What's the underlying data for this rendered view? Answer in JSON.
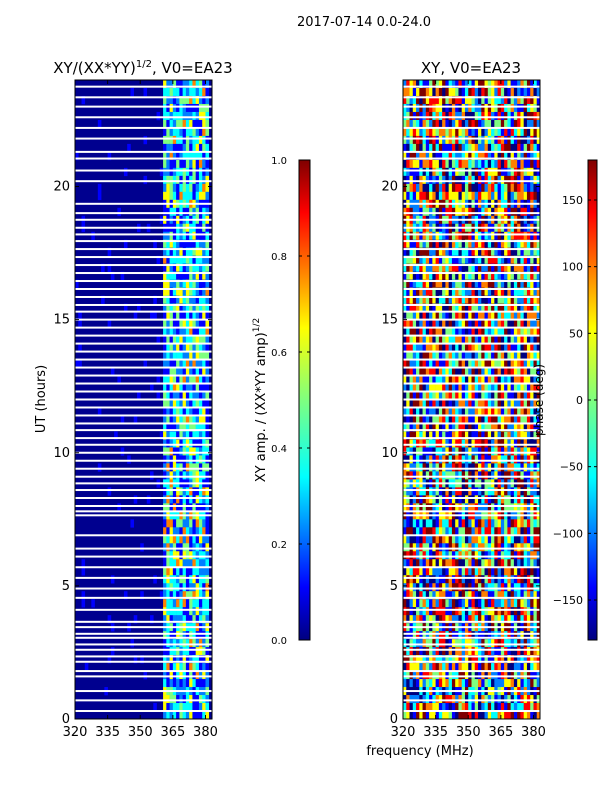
{
  "figure_title": "2017-07-14 0.0-24.0",
  "shared_xlabel": "frequency (MHz)",
  "colors": {
    "jet": [
      "#00007f",
      "#0000ff",
      "#007fff",
      "#00ffff",
      "#7fff7f",
      "#ffff00",
      "#ff7f00",
      "#ff0000",
      "#7f0000"
    ],
    "gap": "#ffffff",
    "low": "#00008f"
  },
  "chart_data": [
    {
      "type": "heatmap",
      "title_main": "XY/(XX*YY)",
      "title_sup": "1/2",
      "title_tail": ", V0=EA23",
      "xlabel": "",
      "ylabel": "UT (hours)",
      "xlim": [
        320,
        383
      ],
      "ylim": [
        0,
        24
      ],
      "xticks": [
        320,
        335,
        350,
        365,
        380
      ],
      "yticks": [
        0,
        5,
        10,
        15,
        20
      ],
      "active_band_mhz": [
        360,
        381
      ],
      "colorbar": {
        "label_main": "XY amp. / (XX*YY amp)",
        "label_sup": "1/2",
        "range": [
          0.0,
          1.0
        ],
        "ticks": [
          "0.0",
          "0.2",
          "0.4",
          "0.6",
          "0.8",
          "1.0"
        ]
      }
    },
    {
      "type": "heatmap",
      "title_main": "XY, V0=EA23",
      "xlabel": "frequency (MHz)",
      "ylabel": "",
      "xlim": [
        320,
        383
      ],
      "ylim": [
        0,
        24
      ],
      "xticks": [
        320,
        335,
        350,
        365,
        380
      ],
      "yticks": [
        0,
        5,
        10,
        15,
        20
      ],
      "colorbar": {
        "label_main": "phase (deg)",
        "range": [
          -180,
          180
        ],
        "ticks": [
          "-150",
          "-100",
          "-50",
          "0",
          "50",
          "100",
          "150"
        ]
      }
    }
  ],
  "flagged_hours": [
    0.3,
    0.7,
    1.05,
    1.6,
    1.8,
    2.15,
    2.35,
    2.6,
    2.8,
    3.05,
    3.2,
    3.45,
    3.65,
    4.1,
    4.55,
    4.9,
    5.3,
    5.7,
    6.1,
    6.4,
    6.9,
    7.65,
    7.8,
    8.0,
    8.3,
    8.6,
    8.85,
    9.1,
    9.4,
    9.7,
    10.0,
    10.3,
    10.55,
    10.85,
    11.1,
    11.4,
    11.7,
    12.0,
    12.3,
    12.6,
    12.9,
    13.2,
    13.5,
    13.8,
    14.1,
    14.4,
    14.7,
    15.0,
    15.3,
    15.55,
    15.85,
    16.15,
    16.45,
    16.75,
    17.05,
    17.35,
    17.65,
    17.95,
    18.2,
    18.45,
    18.75,
    19.0,
    19.35,
    20.2,
    20.6,
    21.05,
    21.3,
    21.8,
    22.2,
    22.6,
    23.0,
    23.35,
    23.75
  ]
}
